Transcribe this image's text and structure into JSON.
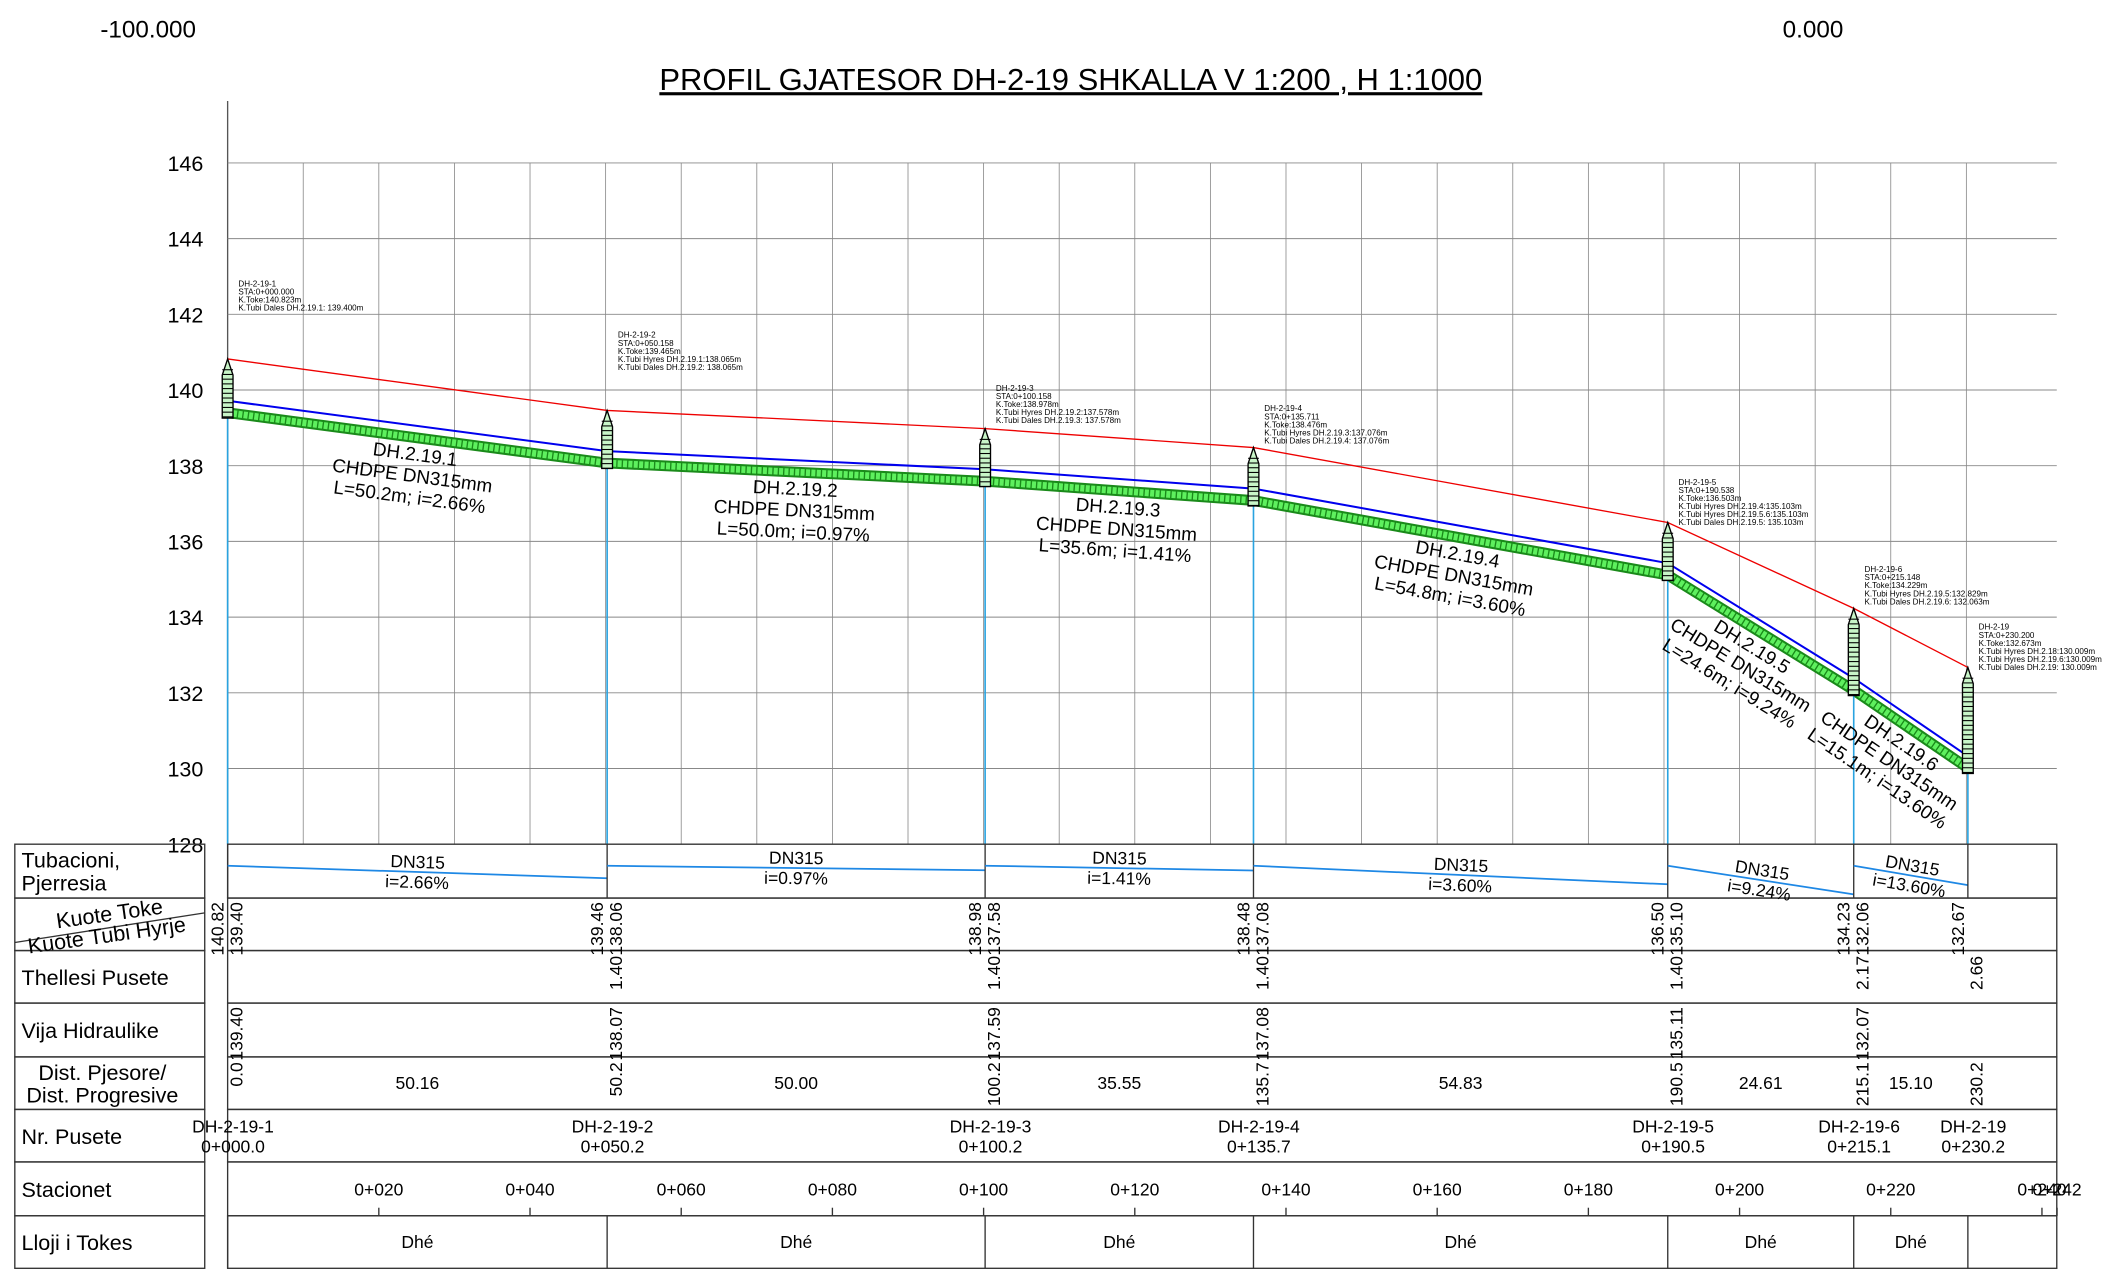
{
  "corner_labels": [
    "-100.000",
    "0.000"
  ],
  "title": "PROFIL GJATESOR DH-2-19 SHKALLA V 1:200 , H 1:1000",
  "elevation_axis": {
    "ticks": [
      146,
      144,
      142,
      140,
      138,
      136,
      134,
      132,
      130,
      128
    ]
  },
  "row_labels": [
    [
      "Tubacioni,",
      "Pjerresia"
    ],
    [
      "Kuote Toke",
      "Kuote Tubi Hyrje"
    ],
    [
      "Thellesi Pusete"
    ],
    [
      "Vija Hidraulike"
    ],
    [
      "Dist. Pjesore/",
      "Dist. Progresive"
    ],
    [
      "Nr. Pusete"
    ],
    [
      "Stacionet"
    ],
    [
      "Lloji i Tokes"
    ]
  ],
  "manholes": [
    {
      "name": "DH-2-19-1",
      "station": "0+000.0",
      "distance": "0.0",
      "ground": "140.82",
      "invert": "139.40",
      "depth": null,
      "hydraulic": "139.40",
      "info": [
        "DH-2-19-1",
        "STA:0+000.000",
        "K.Toke:140.823m",
        "K.Tubi Dales DH.2.19.1:  139.400m"
      ]
    },
    {
      "name": "DH-2-19-2",
      "station": "0+050.2",
      "distance": "50.2",
      "ground": "139.46",
      "invert": "138.06",
      "depth": "1.40",
      "hydraulic": "138.07",
      "info": [
        "DH-2-19-2",
        "STA:0+050.158",
        "K.Toke:139.465m",
        "K.Tubi Hyres DH.2.19.1:138.065m",
        "K.Tubi Dales DH.2.19.2:  138.065m"
      ]
    },
    {
      "name": "DH-2-19-3",
      "station": "0+100.2",
      "distance": "100.2",
      "ground": "138.98",
      "invert": "137.58",
      "depth": "1.40",
      "hydraulic": "137.59",
      "info": [
        "DH-2-19-3",
        "STA:0+100.158",
        "K.Toke:138.978m",
        "K.Tubi Hyres DH.2.19.2:137.578m",
        "K.Tubi Dales DH.2.19.3:  137.578m"
      ]
    },
    {
      "name": "DH-2-19-4",
      "station": "0+135.7",
      "distance": "135.7",
      "ground": "138.48",
      "invert": "137.08",
      "depth": "1.40",
      "hydraulic": "137.08",
      "info": [
        "DH-2-19-4",
        "STA:0+135.711",
        "K.Toke:138.476m",
        "K.Tubi Hyres DH.2.19.3:137.076m",
        "K.Tubi Dales DH.2.19.4:  137.076m"
      ]
    },
    {
      "name": "DH-2-19-5",
      "station": "0+190.5",
      "distance": "190.5",
      "ground": "136.50",
      "invert": "135.10",
      "depth": "1.40",
      "hydraulic": "135.11",
      "info": [
        "DH-2-19-5",
        "STA:0+190.538",
        "K.Toke:136.503m",
        "K.Tubi Hyres DH.2.19.4:135.103m",
        "K.Tubi Hyres DH.2.19.5.6:135.103m",
        "K.Tubi Dales DH.2.19.5:  135.103m"
      ]
    },
    {
      "name": "DH-2-19-6",
      "station": "0+215.1",
      "distance": "215.1",
      "ground": "134.23",
      "invert": "132.06",
      "depth": "2.17",
      "hydraulic": "132.07",
      "info": [
        "DH-2-19-6",
        "STA:0+215.148",
        "K.Toke:134.229m",
        "K.Tubi Hyres DH.2.19.5:132.829m",
        "K.Tubi Dales DH.2.19.6:  132.063m"
      ]
    },
    {
      "name": "DH-2-19",
      "station": "0+230.2",
      "distance": "230.2",
      "ground": "132.67",
      "invert": null,
      "depth": "2.66",
      "hydraulic": null,
      "info": [
        "DH-2-19",
        "STA:0+230.200",
        "K.Toke:132.673m",
        "K.Tubi Hyres DH.2.18:130.009m",
        "K.Tubi Hyres DH.2.19.6:130.009m",
        "K.Tubi Dales DH.2.19:  130.009m"
      ]
    }
  ],
  "pipes": [
    {
      "label": [
        "DH.2.19.1",
        "CHDPE DN315mm",
        "L=50.2m; i=2.66%"
      ],
      "diameter": "DN315",
      "slope": "i=2.66%",
      "partial_distance": "50.16",
      "soil": "Dhé"
    },
    {
      "label": [
        "DH.2.19.2",
        "CHDPE DN315mm",
        "L=50.0m; i=0.97%"
      ],
      "diameter": "DN315",
      "slope": "i=0.97%",
      "partial_distance": "50.00",
      "soil": "Dhé"
    },
    {
      "label": [
        "DH.2.19.3",
        "CHDPE DN315mm",
        "L=35.6m; i=1.41%"
      ],
      "diameter": "DN315",
      "slope": "i=1.41%",
      "partial_distance": "35.55",
      "soil": "Dhé"
    },
    {
      "label": [
        "DH.2.19.4",
        "CHDPE DN315mm",
        "L=54.8m; i=3.60%"
      ],
      "diameter": "DN315",
      "slope": "i=3.60%",
      "partial_distance": "54.83",
      "soil": "Dhé"
    },
    {
      "label": [
        "DH.2.19.5",
        "CHDPE DN315mm",
        "L=24.6m; i=9.24%"
      ],
      "diameter": "DN315",
      "slope": "i=9.24%",
      "partial_distance": "24.61",
      "soil": "Dhé"
    },
    {
      "label": [
        "DH.2.19.6",
        "CHDPE DN315mm",
        "L=15.1m; i=13.60%"
      ],
      "diameter": "DN315",
      "slope": "i=13.60%",
      "partial_distance": "15.10",
      "soil": "Dhé"
    }
  ],
  "station_ticks": [
    "0+020",
    "0+040",
    "0+060",
    "0+080",
    "0+100",
    "0+120",
    "0+140",
    "0+160",
    "0+180",
    "0+200",
    "0+220",
    "0+240",
    "0+242"
  ]
}
